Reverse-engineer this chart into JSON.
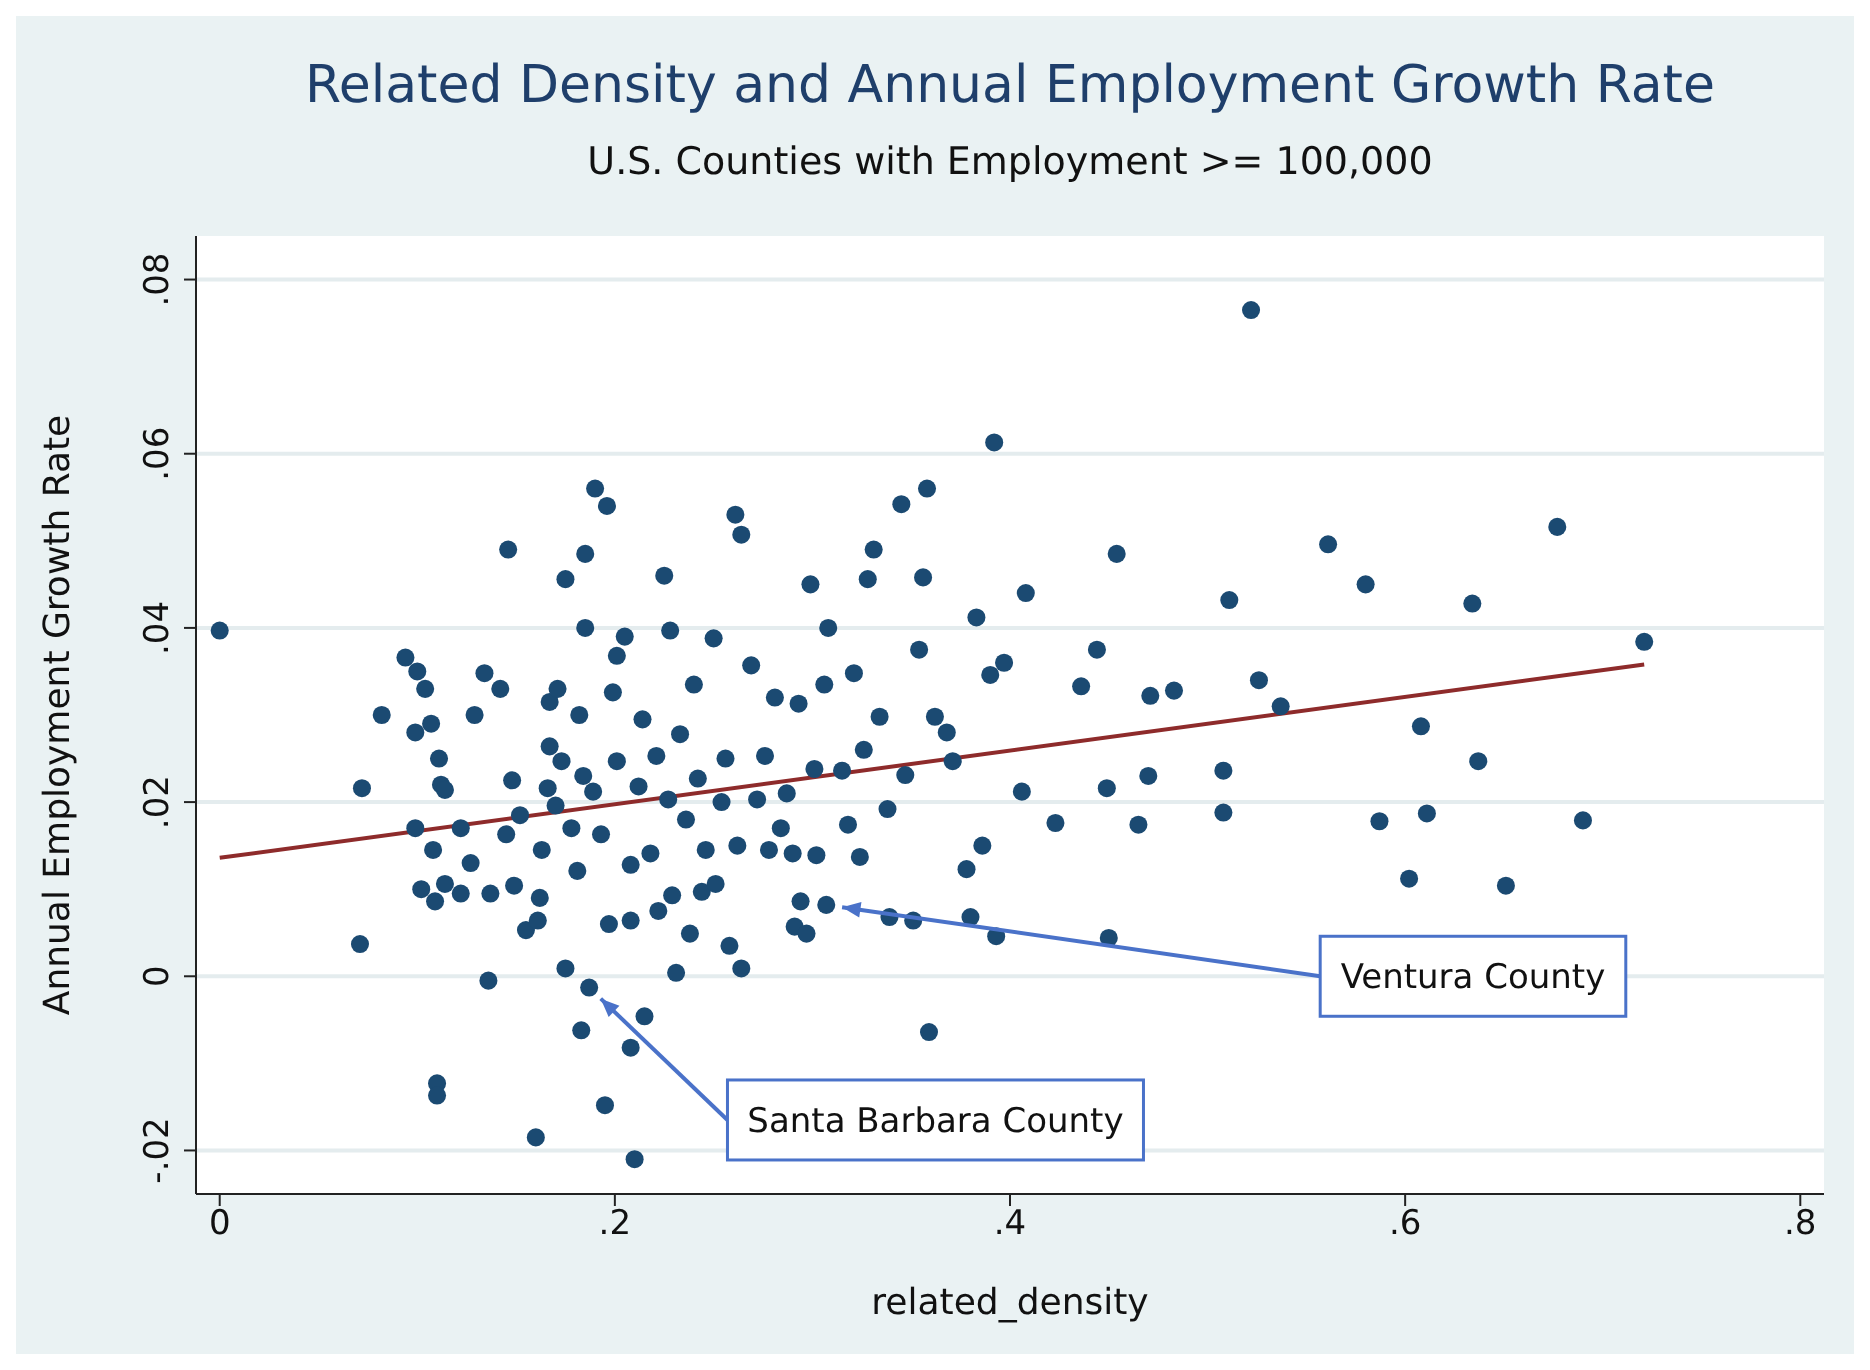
{
  "chart_data": {
    "type": "scatter",
    "title": "Related Density and Annual Employment Growth Rate",
    "subtitle": "U.S. Counties with Employment >= 100,000",
    "xlabel": "related_density",
    "ylabel": "Annual Employment Growth Rate",
    "xlim": [
      -0.012,
      0.812
    ],
    "ylim": [
      -0.025,
      0.085
    ],
    "xticks": [
      {
        "value": 0,
        "label": "0"
      },
      {
        "value": 0.2,
        "label": ".2"
      },
      {
        "value": 0.4,
        "label": ".4"
      },
      {
        "value": 0.6,
        "label": ".6"
      },
      {
        "value": 0.8,
        "label": ".8"
      }
    ],
    "yticks": [
      {
        "value": -0.02,
        "label": "-.02"
      },
      {
        "value": 0,
        "label": "0"
      },
      {
        "value": 0.02,
        "label": ".02"
      },
      {
        "value": 0.04,
        "label": ".04"
      },
      {
        "value": 0.06,
        "label": ".06"
      },
      {
        "value": 0.08,
        "label": ".08"
      }
    ],
    "grid": "y",
    "series": [
      {
        "color": "#1b4a72",
        "marker": "circle",
        "x": [
          0,
          0.071,
          0.072,
          0.082,
          0.094,
          0.099,
          0.099,
          0.1,
          0.104,
          0.102,
          0.107,
          0.108,
          0.109,
          0.111,
          0.112,
          0.114,
          0.114,
          0.11,
          0.11,
          0.122,
          0.122,
          0.127,
          0.129,
          0.134,
          0.136,
          0.137,
          0.142,
          0.145,
          0.146,
          0.148,
          0.149,
          0.152,
          0.155,
          0.16,
          0.161,
          0.162,
          0.163,
          0.166,
          0.167,
          0.167,
          0.17,
          0.171,
          0.173,
          0.175,
          0.175,
          0.178,
          0.181,
          0.182,
          0.183,
          0.184,
          0.185,
          0.185,
          0.187,
          0.189,
          0.19,
          0.193,
          0.195,
          0.196,
          0.197,
          0.199,
          0.201,
          0.201,
          0.205,
          0.208,
          0.208,
          0.208,
          0.21,
          0.212,
          0.214,
          0.215,
          0.218,
          0.221,
          0.222,
          0.225,
          0.227,
          0.228,
          0.229,
          0.231,
          0.233,
          0.236,
          0.238,
          0.24,
          0.242,
          0.244,
          0.246,
          0.25,
          0.251,
          0.254,
          0.256,
          0.258,
          0.261,
          0.262,
          0.264,
          0.264,
          0.269,
          0.272,
          0.276,
          0.278,
          0.281,
          0.284,
          0.287,
          0.29,
          0.291,
          0.293,
          0.294,
          0.297,
          0.299,
          0.301,
          0.302,
          0.307,
          0.306,
          0.308,
          0.315,
          0.318,
          0.321,
          0.324,
          0.326,
          0.328,
          0.331,
          0.334,
          0.338,
          0.339,
          0.345,
          0.347,
          0.351,
          0.354,
          0.356,
          0.358,
          0.359,
          0.362,
          0.368,
          0.371,
          0.378,
          0.38,
          0.383,
          0.386,
          0.39,
          0.392,
          0.393,
          0.397,
          0.406,
          0.408,
          0.423,
          0.436,
          0.444,
          0.449,
          0.45,
          0.454,
          0.465,
          0.47,
          0.471,
          0.483,
          0.508,
          0.508,
          0.511,
          0.522,
          0.526,
          0.537,
          0.561,
          0.58,
          0.587,
          0.602,
          0.608,
          0.611,
          0.634,
          0.637,
          0.651,
          0.677,
          0.69,
          0.721
        ],
        "values": [
          0.0397,
          0.0037,
          0.0216,
          0.03,
          0.0366,
          0.028,
          0.017,
          0.035,
          0.033,
          0.01,
          0.029,
          0.0145,
          0.0086,
          0.025,
          0.022,
          0.0214,
          0.0106,
          -0.0123,
          -0.0137,
          0.0095,
          0.017,
          0.013,
          0.03,
          0.0348,
          -0.0005,
          0.0095,
          0.033,
          0.0163,
          0.049,
          0.0225,
          0.0104,
          0.0185,
          0.0053,
          -0.0185,
          0.0064,
          0.009,
          0.0145,
          0.0216,
          0.0315,
          0.0264,
          0.0196,
          0.033,
          0.0247,
          0.0456,
          0.0009,
          0.017,
          0.0121,
          0.03,
          -0.0062,
          0.023,
          0.0485,
          0.04,
          -0.0013,
          0.0212,
          0.056,
          0.0163,
          -0.0148,
          0.054,
          0.006,
          0.0326,
          0.0368,
          0.0247,
          0.039,
          0.0064,
          -0.0082,
          0.0128,
          -0.021,
          0.0218,
          0.0295,
          -0.0046,
          0.0141,
          0.0253,
          0.0075,
          0.046,
          0.0203,
          0.0397,
          0.0093,
          0.0004,
          0.0278,
          0.018,
          0.0049,
          0.0335,
          0.0227,
          0.0097,
          0.0145,
          0.0388,
          0.0106,
          0.02,
          0.025,
          0.0035,
          0.053,
          0.015,
          0.0507,
          0.0009,
          0.0357,
          0.0203,
          0.0253,
          0.0145,
          0.032,
          0.017,
          0.021,
          0.0141,
          0.0057,
          0.0313,
          0.0086,
          0.0049,
          0.045,
          0.0238,
          0.0139,
          0.0082,
          0.0335,
          0.04,
          0.0236,
          0.0174,
          0.0348,
          0.0137,
          0.026,
          0.0456,
          0.049,
          0.0298,
          0.0192,
          0.0068,
          0.0542,
          0.0231,
          0.0064,
          0.0375,
          0.0458,
          0.056,
          -0.0064,
          0.0298,
          0.028,
          0.0247,
          0.0123,
          0.0068,
          0.0412,
          0.015,
          0.0346,
          0.0613,
          0.0046,
          0.036,
          0.0212,
          0.044,
          0.0176,
          0.0333,
          0.0375,
          0.0216,
          0.0044,
          0.0485,
          0.0174,
          0.023,
          0.0322,
          0.0328,
          0.0188,
          0.0236,
          0.0432,
          0.0765,
          0.034,
          0.031,
          0.0496,
          0.045,
          0.0178,
          0.0112,
          0.0287,
          0.0187,
          0.0428,
          0.0247,
          0.0104,
          0.0516,
          0.0179,
          0.0384
        ]
      },
      {
        "type": "line",
        "color": "#8e2b2b",
        "x": [
          0,
          0.721
        ],
        "values": [
          0.0136,
          0.0358
        ]
      }
    ],
    "annotations": [
      {
        "text": "Ventura County",
        "x": 0.307,
        "y": 0.0082
      },
      {
        "text": "Santa Barbara County",
        "x": 0.187,
        "y": -0.0013
      }
    ]
  }
}
